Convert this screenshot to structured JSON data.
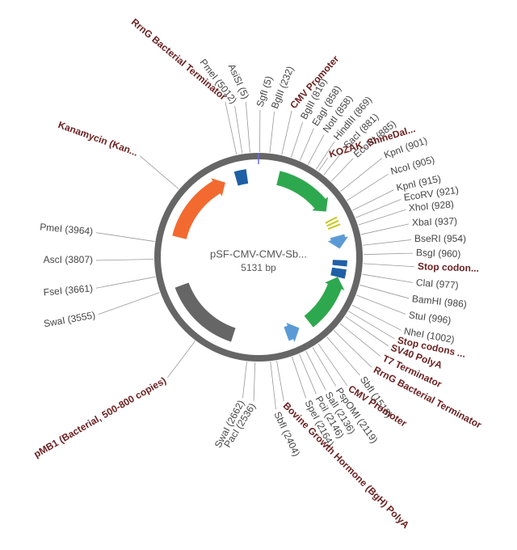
{
  "map": {
    "name": "pSF-CMV-CMV-Sb...",
    "size": "5131 bp",
    "features": [
      "RrnG Bacterial Terminator",
      "CMV Promoter",
      "KOZAK_ShineDal...",
      "Stop codon...",
      "Stop codons ...",
      "SV40 PolyA",
      "T7 Terminator",
      "RrnG Bacterial Terminator",
      "CMV Promoter",
      "Bovine Growth Hormone (BgH) PolyA",
      "pMB1 (Bacterial, 500-800 copies)",
      "Kanamycin (Kan..."
    ],
    "sites": [
      "PmeI (5012)",
      "AsiSI (5)",
      "SgfI (5)",
      "BglII (232)",
      "BglII (816)",
      "EagI (858)",
      "NotI (858)",
      "HindIII (869)",
      "SacI (881)",
      "EcoRI (885)",
      "KpnI (901)",
      "NcoI (905)",
      "KpnI (915)",
      "EcoRV (921)",
      "XhoI (928)",
      "XbaI (937)",
      "BseRI (954)",
      "BsgI (960)",
      "ClaI (977)",
      "BamHI (986)",
      "StuI (996)",
      "NheI (1002)",
      "SbfI (1518)",
      "PspOMI (2119)",
      "SalI (2136)",
      "PciI (2146)",
      "SpeI (2164)",
      "SbfI (2404)",
      "PacI (2536)",
      "SwaI (2662)",
      "SwaI (3555)",
      "FseI (3661)",
      "AscI (3807)",
      "PmeI (3964)"
    ]
  }
}
